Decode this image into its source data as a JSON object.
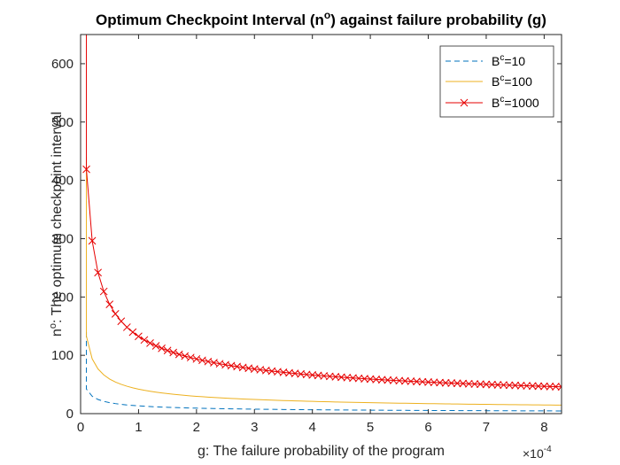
{
  "chart_data": {
    "type": "line",
    "title": {
      "prefix": "Optimum Checkpoint Interval (n",
      "sup": "o",
      "suffix": ") against failure probability (g)"
    },
    "xlabel": "g: The failure probability of the program",
    "ylabel": {
      "prefix": "n",
      "sup": "o",
      "suffix": ": The optimum checkpoint interval"
    },
    "x_exponent": {
      "base": "×10",
      "power": "-4"
    },
    "xlim": [
      0,
      8.3
    ],
    "ylim": [
      0,
      650
    ],
    "xticks": [
      0,
      1,
      2,
      3,
      4,
      5,
      6,
      7,
      8
    ],
    "yticks": [
      0,
      100,
      200,
      300,
      400,
      500,
      600
    ],
    "x_start": 0.1,
    "x_step": 0.1,
    "grid": false,
    "legend_position": "top-right",
    "series": [
      {
        "name": {
          "prefix": "B",
          "sup": "c",
          "suffix": "=10"
        },
        "color": "#0072BD",
        "line_style": "dashed",
        "marker": "none",
        "coef": 13.3,
        "start_value": 140
      },
      {
        "name": {
          "prefix": "B",
          "sup": "c",
          "suffix": "=100"
        },
        "color": "#EDB120",
        "line_style": "solid",
        "marker": "none",
        "coef": 42,
        "start_value": 440
      },
      {
        "name": {
          "prefix": "B",
          "sup": "c",
          "suffix": "=1000"
        },
        "color": "#E60000",
        "line_style": "solid",
        "marker": "x",
        "coef": 132.5,
        "start_value": 1400
      }
    ]
  }
}
